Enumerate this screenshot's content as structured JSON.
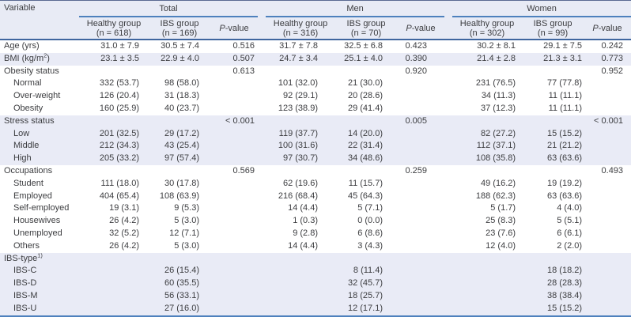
{
  "colors": {
    "rule_blue": "#4e81bd",
    "header_rule_navy": "#3f669f",
    "top_hairline": "#5a6a92",
    "band_lavender": "#e9ebf6",
    "header_lavender": "#e8ebf5",
    "text": "#3c3d40"
  },
  "table": {
    "variable_header": "Variable",
    "p_header": {
      "italic": "P",
      "rest": "-value"
    },
    "groups": [
      {
        "name": "Total",
        "healthy_label": "Healthy group",
        "healthy_n": "(n = 618)",
        "ibs_label": "IBS group",
        "ibs_n": "(n = 169)"
      },
      {
        "name": "Men",
        "healthy_label": "Healthy group",
        "healthy_n": "(n = 316)",
        "ibs_label": "IBS group",
        "ibs_n": "(n = 70)"
      },
      {
        "name": "Women",
        "healthy_label": "Healthy group",
        "healthy_n": "(n = 302)",
        "ibs_label": "IBS group",
        "ibs_n": "(n = 99)"
      }
    ],
    "rows": [
      {
        "pre": "Age (yrs)",
        "sup": "",
        "post": "",
        "indent": false,
        "shade": false,
        "cells": [
          "31.0 ± 7.9",
          "30.5 ± 7.4",
          "0.516",
          "31.7 ± 7.8",
          "32.5 ± 6.8",
          "0.423",
          "30.2 ± 8.1",
          "29.1 ± 7.5",
          "0.242"
        ]
      },
      {
        "pre": "BMI (kg/m",
        "sup": "2",
        "post": ")",
        "indent": false,
        "shade": true,
        "cells": [
          "23.1 ± 3.5",
          "22.9 ± 4.0",
          "0.507",
          "24.7 ± 3.4",
          "25.1 ± 4.0",
          "0.390",
          "21.4 ± 2.8",
          "21.3 ± 3.1",
          "0.773"
        ]
      },
      {
        "pre": "Obesity status",
        "sup": "",
        "post": "",
        "indent": false,
        "shade": false,
        "cells": [
          "",
          "",
          "0.613",
          "",
          "",
          "0.920",
          "",
          "",
          "0.952"
        ]
      },
      {
        "pre": "Normal",
        "sup": "",
        "post": "",
        "indent": true,
        "shade": false,
        "cells": [
          "332 (53.7)",
          "98 (58.0)",
          "",
          "101 (32.0)",
          "21 (30.0)",
          "",
          "231 (76.5)",
          "77 (77.8)",
          ""
        ]
      },
      {
        "pre": "Over-weight",
        "sup": "",
        "post": "",
        "indent": true,
        "shade": false,
        "cells": [
          "126 (20.4)",
          "31 (18.3)",
          "",
          "92 (29.1)",
          "20 (28.6)",
          "",
          "34 (11.3)",
          "11 (11.1)",
          ""
        ]
      },
      {
        "pre": "Obesity",
        "sup": "",
        "post": "",
        "indent": true,
        "shade": false,
        "cells": [
          "160 (25.9)",
          "40 (23.7)",
          "",
          "123 (38.9)",
          "29 (41.4)",
          "",
          "37 (12.3)",
          "11 (11.1)",
          ""
        ]
      },
      {
        "pre": "Stress status",
        "sup": "",
        "post": "",
        "indent": false,
        "shade": true,
        "cells": [
          "",
          "",
          "< 0.001",
          "",
          "",
          "0.005",
          "",
          "",
          "< 0.001"
        ]
      },
      {
        "pre": "Low",
        "sup": "",
        "post": "",
        "indent": true,
        "shade": true,
        "cells": [
          "201 (32.5)",
          "29 (17.2)",
          "",
          "119 (37.7)",
          "14 (20.0)",
          "",
          "82 (27.2)",
          "15 (15.2)",
          ""
        ]
      },
      {
        "pre": "Middle",
        "sup": "",
        "post": "",
        "indent": true,
        "shade": true,
        "cells": [
          "212 (34.3)",
          "43 (25.4)",
          "",
          "100 (31.6)",
          "22 (31.4)",
          "",
          "112 (37.1)",
          "21 (21.2)",
          ""
        ]
      },
      {
        "pre": "High",
        "sup": "",
        "post": "",
        "indent": true,
        "shade": true,
        "cells": [
          "205 (33.2)",
          "97 (57.4)",
          "",
          "97 (30.7)",
          "34 (48.6)",
          "",
          "108 (35.8)",
          "63 (63.6)",
          ""
        ]
      },
      {
        "pre": "Occupations",
        "sup": "",
        "post": "",
        "indent": false,
        "shade": false,
        "cells": [
          "",
          "",
          "0.569",
          "",
          "",
          "0.259",
          "",
          "",
          "0.493"
        ]
      },
      {
        "pre": "Student",
        "sup": "",
        "post": "",
        "indent": true,
        "shade": false,
        "cells": [
          "111 (18.0)",
          "30 (17.8)",
          "",
          "62 (19.6)",
          "11 (15.7)",
          "",
          "49 (16.2)",
          "19 (19.2)",
          ""
        ]
      },
      {
        "pre": "Employed",
        "sup": "",
        "post": "",
        "indent": true,
        "shade": false,
        "cells": [
          "404 (65.4)",
          "108 (63.9)",
          "",
          "216 (68.4)",
          "45 (64.3)",
          "",
          "188 (62.3)",
          "63 (63.6)",
          ""
        ]
      },
      {
        "pre": "Self-employed",
        "sup": "",
        "post": "",
        "indent": true,
        "shade": false,
        "cells": [
          "19 (3.1)",
          "9 (5.3)",
          "",
          "14 (4.4)",
          "5 (7.1)",
          "",
          "5 (1.7)",
          "4 (4.0)",
          ""
        ]
      },
      {
        "pre": "Housewives",
        "sup": "",
        "post": "",
        "indent": true,
        "shade": false,
        "cells": [
          "26 (4.2)",
          "5 (3.0)",
          "",
          "1 (0.3)",
          "0 (0.0)",
          "",
          "25 (8.3)",
          "5 (5.1)",
          ""
        ]
      },
      {
        "pre": "Unemployed",
        "sup": "",
        "post": "",
        "indent": true,
        "shade": false,
        "cells": [
          "32 (5.2)",
          "12 (7.1)",
          "",
          "9 (2.8)",
          "6 (8.6)",
          "",
          "23 (7.6)",
          "6 (6.1)",
          ""
        ]
      },
      {
        "pre": "Others",
        "sup": "",
        "post": "",
        "indent": true,
        "shade": false,
        "cells": [
          "26 (4.2)",
          "5 (3.0)",
          "",
          "14 (4.4)",
          "3 (4.3)",
          "",
          "12 (4.0)",
          "2 (2.0)",
          ""
        ]
      },
      {
        "pre": "IBS-type",
        "sup": "1)",
        "post": "",
        "indent": false,
        "shade": true,
        "cells": [
          "",
          "",
          "",
          "",
          "",
          "",
          "",
          "",
          ""
        ]
      },
      {
        "pre": "IBS-C",
        "sup": "",
        "post": "",
        "indent": true,
        "shade": true,
        "cells": [
          "",
          "26 (15.4)",
          "",
          "",
          "8 (11.4)",
          "",
          "",
          "18 (18.2)",
          ""
        ]
      },
      {
        "pre": "IBS-D",
        "sup": "",
        "post": "",
        "indent": true,
        "shade": true,
        "cells": [
          "",
          "60 (35.5)",
          "",
          "",
          "32 (45.7)",
          "",
          "",
          "28 (28.3)",
          ""
        ]
      },
      {
        "pre": "IBS-M",
        "sup": "",
        "post": "",
        "indent": true,
        "shade": true,
        "cells": [
          "",
          "56 (33.1)",
          "",
          "",
          "18 (25.7)",
          "",
          "",
          "38 (38.4)",
          ""
        ]
      },
      {
        "pre": "IBS-U",
        "sup": "",
        "post": "",
        "indent": true,
        "shade": true,
        "cells": [
          "",
          "27 (16.0)",
          "",
          "",
          "12 (17.1)",
          "",
          "",
          "15 (15.2)",
          ""
        ]
      }
    ]
  }
}
